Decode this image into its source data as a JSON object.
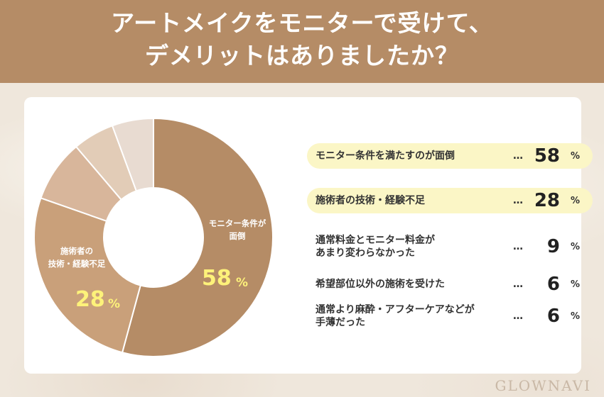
{
  "header": {
    "title": "アートメイクをモニターで受けて、\nデメリットはありましたか？",
    "background": "#b58c66"
  },
  "chart_data": {
    "type": "pie",
    "categories": [
      "モニター条件を満たすのが面倒",
      "施術者の技術・経験不足",
      "通常料金とモニター料金が あまり変わらなかった",
      "希望部位以外の施術を受けた",
      "通常より麻酔・アフターケアなどが 手薄だった"
    ],
    "values": [
      58,
      28,
      9,
      6,
      6
    ],
    "unit": "%",
    "colors": [
      "#b58c66",
      "#c9a07a",
      "#d8b69b",
      "#e2ccb7",
      "#e8dbd1"
    ],
    "donut": true,
    "slice_labels": [
      {
        "text": "モニター条件が\n面倒",
        "pct": "58",
        "unit": "%"
      },
      {
        "text": "施術者の\n技術・経験不足",
        "pct": "28",
        "unit": "%"
      }
    ],
    "legend": [
      {
        "label": "モニター条件を満たすのが面倒",
        "dots": "…",
        "value": "58",
        "unit": "%",
        "highlight": true
      },
      {
        "label": "施術者の技術・経験不足",
        "dots": "…",
        "value": "28",
        "unit": "%",
        "highlight": true
      },
      {
        "label": "通常料金とモニター料金が\nあまり変わらなかった",
        "dots": "…",
        "value": "9",
        "unit": "%",
        "highlight": false
      },
      {
        "label": "希望部位以外の施術を受けた",
        "dots": "…",
        "value": "6",
        "unit": "%",
        "highlight": false
      },
      {
        "label": "通常より麻酔・アフターケアなどが\n手薄だった",
        "dots": "…",
        "value": "6",
        "unit": "%",
        "highlight": false
      }
    ],
    "highlight_color": "#fbf6c6",
    "label_color": "#fdf27a"
  },
  "logo": {
    "text": "GLOWNAVI"
  }
}
